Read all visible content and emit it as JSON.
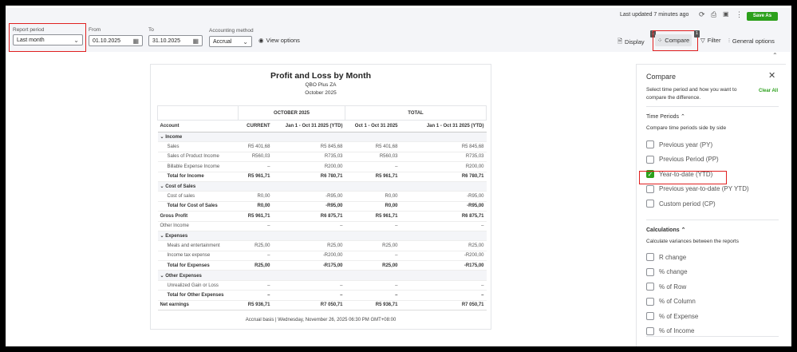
{
  "header": {
    "last_updated": "Last updated 7 minutes ago",
    "save_as": "Save As"
  },
  "filters": {
    "report_period_label": "Report period",
    "report_period": "Last month",
    "from_label": "From",
    "from": "01.10.2025",
    "to_label": "To",
    "to": "31.10.2025",
    "method_label": "Accounting method",
    "method": "Accrual",
    "view_options": "View options"
  },
  "toolbar": {
    "display": "Display",
    "display_badge": "1",
    "compare": "Compare",
    "compare_badge": "1",
    "filter": "Filter",
    "general_options": "General options"
  },
  "report": {
    "title": "Profit and Loss by Month",
    "company": "QBO Plus ZA",
    "period": "October 2025",
    "group_headers": [
      "OCTOBER 2025",
      "TOTAL"
    ],
    "columns": [
      "Account",
      "CURRENT",
      "Jan 1 - Oct 31 2025 (YTD)",
      "Oct 1 - Oct 31 2025",
      "Jan 1 - Oct 31 2025 (YTD)"
    ],
    "rows": [
      {
        "type": "section",
        "label": "Income"
      },
      {
        "type": "item",
        "label": "Sales",
        "values": [
          "R5 401,68",
          "R5 845,68",
          "R5 401,68",
          "R5 845,68"
        ]
      },
      {
        "type": "item",
        "label": "Sales of Product Income",
        "values": [
          "R560,03",
          "R735,03",
          "R560,03",
          "R735,03"
        ]
      },
      {
        "type": "item",
        "label": "Billable Expense Income",
        "values": [
          "–",
          "R200,00",
          "–",
          "R200,00"
        ]
      },
      {
        "type": "total",
        "label": "Total for Income",
        "values": [
          "R5 961,71",
          "R6 780,71",
          "R5 961,71",
          "R6 780,71"
        ]
      },
      {
        "type": "section",
        "label": "Cost of Sales"
      },
      {
        "type": "item",
        "label": "Cost of sales",
        "values": [
          "R0,00",
          "-R95,00",
          "R0,00",
          "-R95,00"
        ]
      },
      {
        "type": "total",
        "label": "Total for Cost of Sales",
        "values": [
          "R0,00",
          "-R95,00",
          "R0,00",
          "-R95,00"
        ]
      },
      {
        "type": "top",
        "label": "Gross Profit",
        "values": [
          "R5 961,71",
          "R6 875,71",
          "R5 961,71",
          "R6 875,71"
        ]
      },
      {
        "type": "plain",
        "label": "Other Income",
        "values": [
          "–",
          "–",
          "–",
          "–"
        ]
      },
      {
        "type": "section",
        "label": "Expenses"
      },
      {
        "type": "item",
        "label": "Meals and entertainment",
        "values": [
          "R25,00",
          "R25,00",
          "R25,00",
          "R25,00"
        ]
      },
      {
        "type": "item",
        "label": "Income tax expense",
        "values": [
          "–",
          "-R200,00",
          "–",
          "-R200,00"
        ]
      },
      {
        "type": "total",
        "label": "Total for Expenses",
        "values": [
          "R25,00",
          "-R175,00",
          "R25,00",
          "-R175,00"
        ]
      },
      {
        "type": "section",
        "label": "Other Expenses"
      },
      {
        "type": "item",
        "label": "Unrealized Gain or Loss",
        "values": [
          "–",
          "–",
          "–",
          "–"
        ]
      },
      {
        "type": "total",
        "label": "Total for Other Expenses",
        "values": [
          "–",
          "–",
          "–",
          "–"
        ]
      },
      {
        "type": "top net",
        "label": "Net earnings",
        "values": [
          "R5 936,71",
          "R7 050,71",
          "R5 936,71",
          "R7 050,71"
        ]
      }
    ],
    "footer": "Accrual basis  |  Wednesday, November 26, 2025 06:30 PM GMT+08:00"
  },
  "compare": {
    "title": "Compare",
    "description": "Select time period and how you want to compare the difference.",
    "clear_all": "Clear All",
    "time_periods_title": "Time Periods",
    "time_periods_desc": "Compare time periods side by side",
    "time_periods": [
      {
        "label": "Previous year (PY)",
        "checked": false
      },
      {
        "label": "Previous Period (PP)",
        "checked": false
      },
      {
        "label": "Year-to-date (YTD)",
        "checked": true
      },
      {
        "label": "Previous year-to-date (PY YTD)",
        "checked": false
      },
      {
        "label": "Custom period (CP)",
        "checked": false
      }
    ],
    "calculations_title": "Calculations",
    "calculations_desc": "Calculate variances between the reports",
    "calculations": [
      {
        "label": "R change",
        "checked": false
      },
      {
        "label": "% change",
        "checked": false
      },
      {
        "label": "% of Row",
        "checked": false
      },
      {
        "label": "% of Column",
        "checked": false
      },
      {
        "label": "% of Expense",
        "checked": false
      },
      {
        "label": "% of Income",
        "checked": false
      }
    ]
  },
  "colors": {
    "accent": "#2ca01c",
    "highlight": "#e02020"
  }
}
